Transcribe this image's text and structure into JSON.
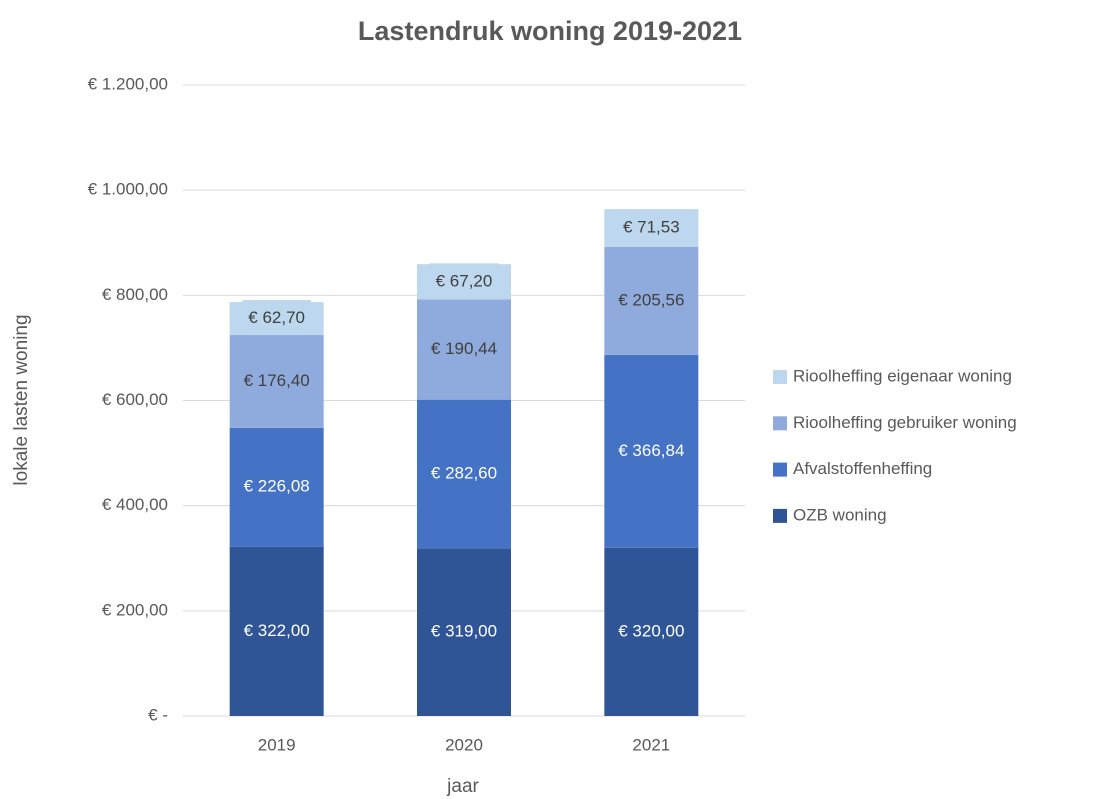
{
  "chart_data": {
    "type": "stacked_bar",
    "title": "Lastendruk woning 2019-2021",
    "x_label": "jaar",
    "y_label": "lokale lasten woning",
    "categories": [
      "2019",
      "2020",
      "2021"
    ],
    "series": [
      {
        "name": "OZB woning",
        "color": "#2f5597",
        "label_color": "#ffffff",
        "values": [
          322,
          319,
          320
        ],
        "value_labels": [
          "€ 322,00",
          "€ 319,00",
          "€ 320,00"
        ]
      },
      {
        "name": "Afvalstoffenheffing",
        "color": "#4472c4",
        "label_color": "#ffffff",
        "values": [
          226.08,
          282.6,
          366.84
        ],
        "value_labels": [
          "€ 226,08",
          "€ 282,60",
          "€ 366,84"
        ]
      },
      {
        "name": "Rioolheffing gebruiker woning",
        "color": "#8faadc",
        "label_color": "#404040",
        "values": [
          176.4,
          190.44,
          205.56
        ],
        "value_labels": [
          "€ 176,40",
          "€ 190,44",
          "€ 205,56"
        ]
      },
      {
        "name": "Rioolheffing eigenaar woning",
        "color": "#bdd7ee",
        "label_color": "#404040",
        "values": [
          62.7,
          67.2,
          71.53
        ],
        "value_labels": [
          "€ 62,70",
          "€ 67,20",
          "€ 71,53"
        ]
      }
    ],
    "ylim": [
      0,
      1200
    ],
    "yticks": [
      {
        "value": 0,
        "label": "€ -"
      },
      {
        "value": 200,
        "label": "€ 200,00"
      },
      {
        "value": 400,
        "label": "€ 400,00"
      },
      {
        "value": 600,
        "label": "€ 600,00"
      },
      {
        "value": 800,
        "label": "€ 800,00"
      },
      {
        "value": 1000,
        "label": "€ 1.000,00"
      },
      {
        "value": 1200,
        "label": "€ 1.200,00"
      }
    ],
    "grid": true,
    "legend": "right"
  }
}
